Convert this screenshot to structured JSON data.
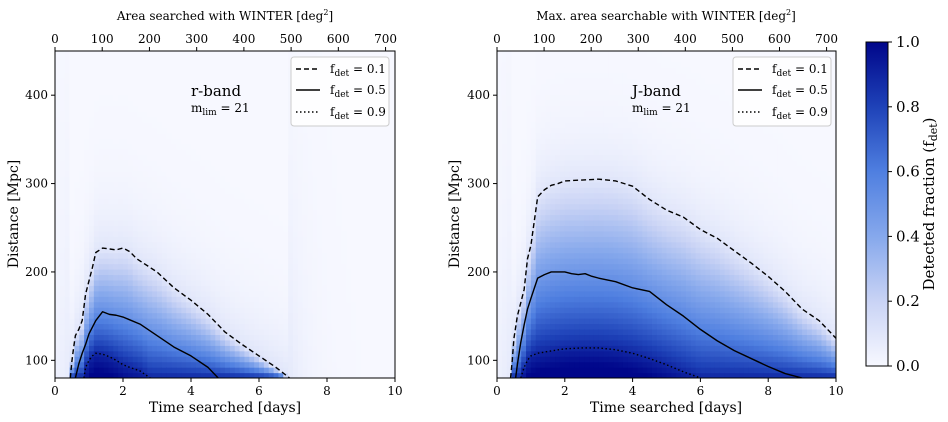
{
  "chart_data": [
    {
      "type": "heatmap",
      "band_label": "r-band",
      "mlim_prefix": "m",
      "mlim_sub": "lim",
      "mlim_value": " = 21",
      "xlabel": "Time searched [days]",
      "ylabel": "Distance [Mpc]",
      "top_axis_label": "Area searched with WINTER [deg",
      "top_axis_sup": "2",
      "top_axis_close": "]",
      "xlim": [
        0,
        10
      ],
      "ylim": [
        80,
        450
      ],
      "x_ticks": [
        0,
        2,
        4,
        6,
        8,
        10
      ],
      "y_ticks": [
        100,
        200,
        300,
        400
      ],
      "top_ticks": [
        0,
        100,
        200,
        300,
        400,
        500,
        600,
        700
      ],
      "top_axis_max": 720,
      "legend_placement": "top-right",
      "peak": {
        "t": 1.6,
        "d": 120
      },
      "contours": [
        {
          "label_prefix": "f",
          "label_sub": "det",
          "label_value": " = 0.1",
          "style": "dashed",
          "x": [
            0.45,
            0.5,
            0.55,
            0.6,
            0.7,
            0.8,
            0.9,
            1.0,
            1.1,
            1.2,
            1.4,
            1.6,
            1.8,
            2.0,
            2.2,
            2.4,
            2.6,
            2.8,
            3.0,
            3.5,
            4.0,
            4.5,
            5.0,
            5.5,
            6.0,
            6.5,
            6.9
          ],
          "y": [
            80,
            100,
            115,
            128,
            135,
            145,
            175,
            190,
            205,
            222,
            227,
            226,
            225,
            227,
            223,
            215,
            210,
            205,
            200,
            182,
            168,
            152,
            132,
            118,
            105,
            92,
            80
          ]
        },
        {
          "label_prefix": "f",
          "label_sub": "det",
          "label_value": " = 0.5",
          "style": "solid",
          "x": [
            0.6,
            0.7,
            0.8,
            0.9,
            1.0,
            1.2,
            1.4,
            1.6,
            1.8,
            2.0,
            2.5,
            3.0,
            3.5,
            4.0,
            4.5,
            4.8
          ],
          "y": [
            80,
            96,
            108,
            118,
            130,
            145,
            155,
            152,
            151,
            149,
            141,
            128,
            115,
            105,
            92,
            80
          ]
        },
        {
          "label_prefix": "f",
          "label_sub": "det",
          "label_value": " = 0.9",
          "style": "dotted",
          "x": [
            0.85,
            0.9,
            1.0,
            1.1,
            1.2,
            1.4,
            1.6,
            1.8,
            2.0,
            2.2,
            2.5,
            2.8
          ],
          "y": [
            80,
            92,
            100,
            105,
            108,
            107,
            104,
            100,
            95,
            92,
            88,
            80
          ]
        }
      ]
    },
    {
      "type": "heatmap",
      "band_label": "J-band",
      "mlim_prefix": "m",
      "mlim_sub": "lim",
      "mlim_value": " = 21",
      "xlabel": "Time searched [days]",
      "ylabel": "Distance [Mpc]",
      "top_axis_label": "Max. area searchable with WINTER [deg",
      "top_axis_sup": "2",
      "top_axis_close": "]",
      "xlim": [
        0,
        10
      ],
      "ylim": [
        80,
        450
      ],
      "x_ticks": [
        0,
        2,
        4,
        6,
        8,
        10
      ],
      "y_ticks": [
        100,
        200,
        300,
        400
      ],
      "top_ticks": [
        0,
        100,
        200,
        300,
        400,
        500,
        600,
        700
      ],
      "top_axis_max": 720,
      "legend_placement": "top-right",
      "peak": {
        "t": 2.5,
        "d": 130
      },
      "contours": [
        {
          "label_prefix": "f",
          "label_sub": "det",
          "label_value": " = 0.1",
          "style": "dashed",
          "x": [
            0.4,
            0.45,
            0.5,
            0.6,
            0.7,
            0.8,
            0.9,
            1.0,
            1.2,
            1.4,
            1.6,
            1.8,
            2.0,
            2.5,
            3.0,
            3.5,
            4.0,
            4.5,
            5.0,
            5.5,
            6.0,
            6.5,
            7.0,
            7.5,
            8.0,
            8.5,
            9.0,
            9.5,
            10.0
          ],
          "y": [
            80,
            100,
            125,
            150,
            165,
            180,
            215,
            230,
            285,
            293,
            298,
            300,
            303,
            304,
            305,
            303,
            297,
            282,
            270,
            262,
            248,
            238,
            224,
            210,
            195,
            178,
            158,
            145,
            125
          ]
        },
        {
          "label_prefix": "f",
          "label_sub": "det",
          "label_value": " = 0.5",
          "style": "solid",
          "x": [
            0.55,
            0.6,
            0.7,
            0.8,
            0.9,
            1.0,
            1.2,
            1.4,
            1.6,
            1.8,
            2.0,
            2.2,
            2.4,
            2.6,
            2.8,
            3.0,
            3.5,
            4.0,
            4.5,
            5.0,
            5.5,
            6.0,
            6.5,
            7.0,
            7.5,
            8.0,
            8.5,
            9.0
          ],
          "y": [
            80,
            95,
            120,
            140,
            158,
            170,
            193,
            197,
            200,
            200,
            200,
            198,
            197,
            198,
            195,
            193,
            189,
            182,
            178,
            163,
            150,
            135,
            122,
            111,
            102,
            93,
            85,
            80
          ]
        },
        {
          "label_prefix": "f",
          "label_sub": "det",
          "label_value": " = 0.9",
          "style": "dotted",
          "x": [
            0.7,
            0.8,
            0.9,
            1.0,
            1.2,
            1.5,
            2.0,
            2.5,
            3.0,
            3.5,
            4.0,
            4.5,
            5.0,
            5.5,
            6.0
          ],
          "y": [
            80,
            92,
            100,
            105,
            108,
            110,
            113,
            114,
            114,
            112,
            108,
            102,
            95,
            87,
            80
          ]
        }
      ]
    }
  ],
  "colorbar": {
    "label_prefix": "Detected fraction (f",
    "label_sub": "det",
    "label_close": ")",
    "ticks": [
      "0.0",
      "0.2",
      "0.4",
      "0.6",
      "0.8",
      "1.0"
    ],
    "colors": [
      "#f7f8ff",
      "#c9d3f5",
      "#86a8ec",
      "#4f7fe0",
      "#1e42b8",
      "#00068a"
    ]
  }
}
